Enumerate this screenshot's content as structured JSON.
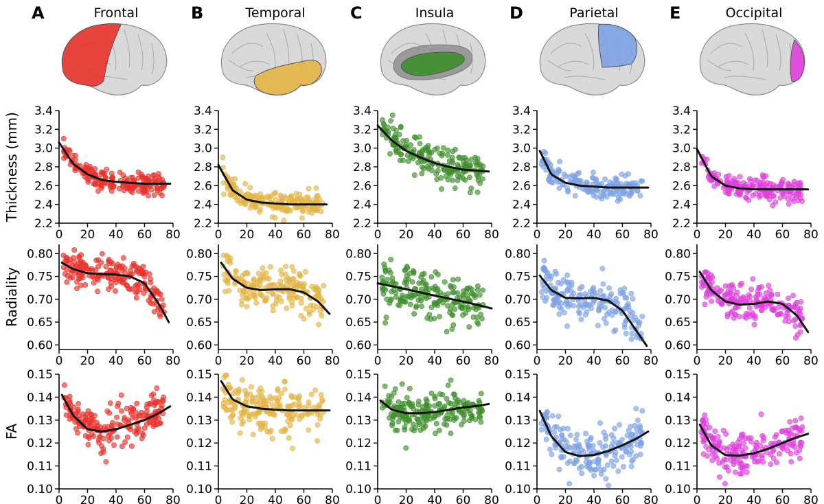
{
  "figure": {
    "panels": [
      {
        "letter": "A",
        "region": "Frontal",
        "color": "#e8322b",
        "brain": "lateral",
        "highlight": "frontal"
      },
      {
        "letter": "B",
        "region": "Temporal",
        "color": "#e3b546",
        "brain": "lateral",
        "highlight": "temporal"
      },
      {
        "letter": "C",
        "region": "Insula",
        "color": "#3f8f2c",
        "brain": "insula",
        "highlight": "insula"
      },
      {
        "letter": "D",
        "region": "Parietal",
        "color": "#7ea2e4",
        "brain": "lateral",
        "highlight": "parietal"
      },
      {
        "letter": "E",
        "region": "Occipital",
        "color": "#de40dc",
        "brain": "lateral",
        "highlight": "occipital"
      }
    ],
    "row_labels": [
      "Thickness (mm)",
      "Radiality",
      "FA"
    ],
    "x_ticks": [
      "0",
      "20",
      "40",
      "60",
      "80"
    ],
    "row_ticks": [
      [
        "2.2",
        "2.4",
        "2.6",
        "2.8",
        "3.0",
        "3.2",
        "3.4"
      ],
      [
        "0.60",
        "0.65",
        "0.70",
        "0.75",
        "0.80"
      ],
      [
        "0.10",
        "0.11",
        "0.12",
        "0.13",
        "0.14",
        "0.15"
      ]
    ],
    "fit_color": "#111111",
    "brain_color": "#d9d9d9"
  },
  "chart_data": [
    {
      "type": "scatter",
      "panel": "A",
      "row": "thickness",
      "xlim": [
        0,
        80
      ],
      "ylim": [
        2.2,
        3.4
      ],
      "ylabel": "Thickness (mm)",
      "color": "#e8322b",
      "fit": {
        "x": [
          0,
          10,
          20,
          30,
          40,
          50,
          60,
          70,
          78
        ],
        "y": [
          3.06,
          2.83,
          2.72,
          2.66,
          2.64,
          2.63,
          2.62,
          2.62,
          2.62
        ]
      },
      "cloud": {
        "xmin": 3,
        "xmax": 74,
        "sd": 0.055,
        "n": 190
      }
    },
    {
      "type": "scatter",
      "panel": "B",
      "row": "thickness",
      "xlim": [
        0,
        80
      ],
      "ylim": [
        2.2,
        3.4
      ],
      "color": "#e3b546",
      "fit": {
        "x": [
          0,
          10,
          20,
          30,
          40,
          50,
          60,
          70,
          76
        ],
        "y": [
          2.82,
          2.55,
          2.45,
          2.42,
          2.41,
          2.4,
          2.4,
          2.4,
          2.4
        ]
      },
      "cloud": {
        "xmin": 3,
        "xmax": 74,
        "sd": 0.06,
        "n": 190
      }
    },
    {
      "type": "scatter",
      "panel": "C",
      "row": "thickness",
      "xlim": [
        0,
        80
      ],
      "ylim": [
        2.2,
        3.4
      ],
      "color": "#3f8f2c",
      "fit": {
        "x": [
          0,
          10,
          20,
          30,
          40,
          50,
          60,
          70,
          78
        ],
        "y": [
          3.24,
          3.08,
          2.97,
          2.9,
          2.84,
          2.8,
          2.77,
          2.76,
          2.75
        ]
      },
      "cloud": {
        "xmin": 3,
        "xmax": 74,
        "sd": 0.09,
        "n": 200
      }
    },
    {
      "type": "scatter",
      "panel": "D",
      "row": "thickness",
      "xlim": [
        0,
        80
      ],
      "ylim": [
        2.2,
        3.4
      ],
      "color": "#7ea2e4",
      "fit": {
        "x": [
          2,
          10,
          20,
          30,
          40,
          50,
          60,
          70,
          78
        ],
        "y": [
          2.97,
          2.72,
          2.63,
          2.6,
          2.59,
          2.58,
          2.58,
          2.58,
          2.58
        ]
      },
      "cloud": {
        "xmin": 3,
        "xmax": 74,
        "sd": 0.06,
        "n": 190
      }
    },
    {
      "type": "scatter",
      "panel": "E",
      "row": "thickness",
      "xlim": [
        0,
        80
      ],
      "ylim": [
        2.2,
        3.4
      ],
      "color": "#de40dc",
      "fit": {
        "x": [
          0,
          10,
          20,
          30,
          40,
          50,
          60,
          70,
          78
        ],
        "y": [
          2.99,
          2.7,
          2.6,
          2.57,
          2.56,
          2.56,
          2.56,
          2.56,
          2.56
        ]
      },
      "cloud": {
        "xmin": 3,
        "xmax": 74,
        "sd": 0.06,
        "n": 200
      }
    },
    {
      "type": "scatter",
      "panel": "A",
      "row": "radiality",
      "xlim": [
        0,
        80
      ],
      "ylim": [
        0.59,
        0.82
      ],
      "ylabel": "Radiality",
      "color": "#e8322b",
      "fit": {
        "x": [
          2,
          10,
          20,
          30,
          40,
          50,
          60,
          70,
          77
        ],
        "y": [
          0.78,
          0.766,
          0.757,
          0.755,
          0.754,
          0.75,
          0.735,
          0.69,
          0.65
        ]
      },
      "cloud": {
        "xmin": 3,
        "xmax": 74,
        "sd": 0.02,
        "n": 190
      }
    },
    {
      "type": "scatter",
      "panel": "B",
      "row": "radiality",
      "xlim": [
        0,
        80
      ],
      "ylim": [
        0.59,
        0.82
      ],
      "color": "#e3b546",
      "fit": {
        "x": [
          2,
          10,
          20,
          30,
          40,
          50,
          60,
          70,
          78
        ],
        "y": [
          0.78,
          0.745,
          0.725,
          0.72,
          0.722,
          0.722,
          0.715,
          0.695,
          0.668
        ]
      },
      "cloud": {
        "xmin": 3,
        "xmax": 74,
        "sd": 0.022,
        "n": 200
      }
    },
    {
      "type": "scatter",
      "panel": "C",
      "row": "radiality",
      "xlim": [
        0,
        80
      ],
      "ylim": [
        0.59,
        0.82
      ],
      "color": "#3f8f2c",
      "fit": {
        "x": [
          0,
          20,
          40,
          60,
          80
        ],
        "y": [
          0.735,
          0.722,
          0.708,
          0.695,
          0.68
        ]
      },
      "cloud": {
        "xmin": 3,
        "xmax": 74,
        "sd": 0.025,
        "n": 200
      }
    },
    {
      "type": "scatter",
      "panel": "D",
      "row": "radiality",
      "xlim": [
        0,
        80
      ],
      "ylim": [
        0.59,
        0.82
      ],
      "color": "#7ea2e4",
      "fit": {
        "x": [
          2,
          10,
          20,
          30,
          40,
          50,
          60,
          70,
          77
        ],
        "y": [
          0.752,
          0.72,
          0.703,
          0.702,
          0.703,
          0.697,
          0.675,
          0.63,
          0.598
        ]
      },
      "cloud": {
        "xmin": 3,
        "xmax": 74,
        "sd": 0.025,
        "n": 190
      }
    },
    {
      "type": "scatter",
      "panel": "E",
      "row": "radiality",
      "xlim": [
        0,
        80
      ],
      "ylim": [
        0.59,
        0.82
      ],
      "color": "#de40dc",
      "fit": {
        "x": [
          2,
          10,
          20,
          30,
          40,
          50,
          60,
          70,
          78
        ],
        "y": [
          0.76,
          0.72,
          0.695,
          0.688,
          0.69,
          0.695,
          0.69,
          0.665,
          0.628
        ]
      },
      "cloud": {
        "xmin": 3,
        "xmax": 74,
        "sd": 0.022,
        "n": 200
      }
    },
    {
      "type": "scatter",
      "panel": "A",
      "row": "fa",
      "xlim": [
        0,
        80
      ],
      "ylim": [
        0.1,
        0.15
      ],
      "ylabel": "FA",
      "color": "#e8322b",
      "fit": {
        "x": [
          2,
          10,
          20,
          30,
          40,
          50,
          60,
          70,
          78
        ],
        "y": [
          0.141,
          0.132,
          0.126,
          0.125,
          0.126,
          0.128,
          0.13,
          0.133,
          0.136
        ]
      },
      "cloud": {
        "xmin": 3,
        "xmax": 74,
        "sd": 0.0045,
        "n": 200
      }
    },
    {
      "type": "scatter",
      "panel": "B",
      "row": "fa",
      "xlim": [
        0,
        80
      ],
      "ylim": [
        0.1,
        0.15
      ],
      "color": "#e3b546",
      "fit": {
        "x": [
          2,
          10,
          20,
          30,
          40,
          50,
          60,
          70,
          78
        ],
        "y": [
          0.147,
          0.139,
          0.136,
          0.135,
          0.1345,
          0.1342,
          0.1342,
          0.1342,
          0.1342
        ]
      },
      "cloud": {
        "xmin": 3,
        "xmax": 74,
        "sd": 0.005,
        "n": 200
      }
    },
    {
      "type": "scatter",
      "panel": "C",
      "row": "fa",
      "xlim": [
        0,
        80
      ],
      "ylim": [
        0.1,
        0.15
      ],
      "color": "#3f8f2c",
      "fit": {
        "x": [
          2,
          10,
          20,
          30,
          40,
          50,
          60,
          70,
          78
        ],
        "y": [
          0.1385,
          0.1345,
          0.133,
          0.133,
          0.1335,
          0.1345,
          0.1355,
          0.1362,
          0.137
        ]
      },
      "cloud": {
        "xmin": 3,
        "xmax": 74,
        "sd": 0.0045,
        "n": 210
      }
    },
    {
      "type": "scatter",
      "panel": "D",
      "row": "fa",
      "xlim": [
        0,
        80
      ],
      "ylim": [
        0.1,
        0.15
      ],
      "color": "#7ea2e4",
      "fit": {
        "x": [
          2,
          10,
          20,
          30,
          40,
          50,
          60,
          70,
          78
        ],
        "y": [
          0.134,
          0.123,
          0.116,
          0.1143,
          0.1148,
          0.1165,
          0.119,
          0.122,
          0.125
        ]
      },
      "cloud": {
        "xmin": 3,
        "xmax": 74,
        "sd": 0.005,
        "n": 200
      }
    },
    {
      "type": "scatter",
      "panel": "E",
      "row": "fa",
      "xlim": [
        0,
        80
      ],
      "ylim": [
        0.1,
        0.15
      ],
      "color": "#de40dc",
      "fit": {
        "x": [
          2,
          10,
          20,
          30,
          40,
          50,
          60,
          70,
          78
        ],
        "y": [
          0.128,
          0.119,
          0.1147,
          0.1145,
          0.1155,
          0.1175,
          0.12,
          0.1225,
          0.124
        ]
      },
      "cloud": {
        "xmin": 3,
        "xmax": 74,
        "sd": 0.0045,
        "n": 200
      }
    }
  ]
}
